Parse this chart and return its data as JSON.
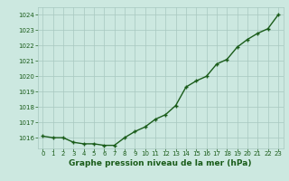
{
  "x": [
    0,
    1,
    2,
    3,
    4,
    5,
    6,
    7,
    8,
    9,
    10,
    11,
    12,
    13,
    14,
    15,
    16,
    17,
    18,
    19,
    20,
    21,
    22,
    23
  ],
  "y": [
    1016.1,
    1016.0,
    1016.0,
    1015.7,
    1015.6,
    1015.6,
    1015.5,
    1015.5,
    1016.0,
    1016.4,
    1016.7,
    1017.2,
    1017.5,
    1018.1,
    1019.3,
    1019.7,
    1020.0,
    1020.8,
    1021.1,
    1021.9,
    1022.4,
    1022.8,
    1023.1,
    1024.0
  ],
  "bg_color": "#cce8e0",
  "line_color": "#1a5c1a",
  "marker_color": "#1a5c1a",
  "grid_color": "#a8c8c0",
  "xlabel": "Graphe pression niveau de la mer (hPa)",
  "xlabel_color": "#1a5c1a",
  "tick_label_color": "#1a5c1a",
  "ylim": [
    1015.3,
    1024.5
  ],
  "yticks": [
    1016,
    1017,
    1018,
    1019,
    1020,
    1021,
    1022,
    1023,
    1024
  ],
  "xticks": [
    0,
    1,
    2,
    3,
    4,
    5,
    6,
    7,
    8,
    9,
    10,
    11,
    12,
    13,
    14,
    15,
    16,
    17,
    18,
    19,
    20,
    21,
    22,
    23
  ],
  "marker_size": 3.5,
  "line_width": 1.0
}
